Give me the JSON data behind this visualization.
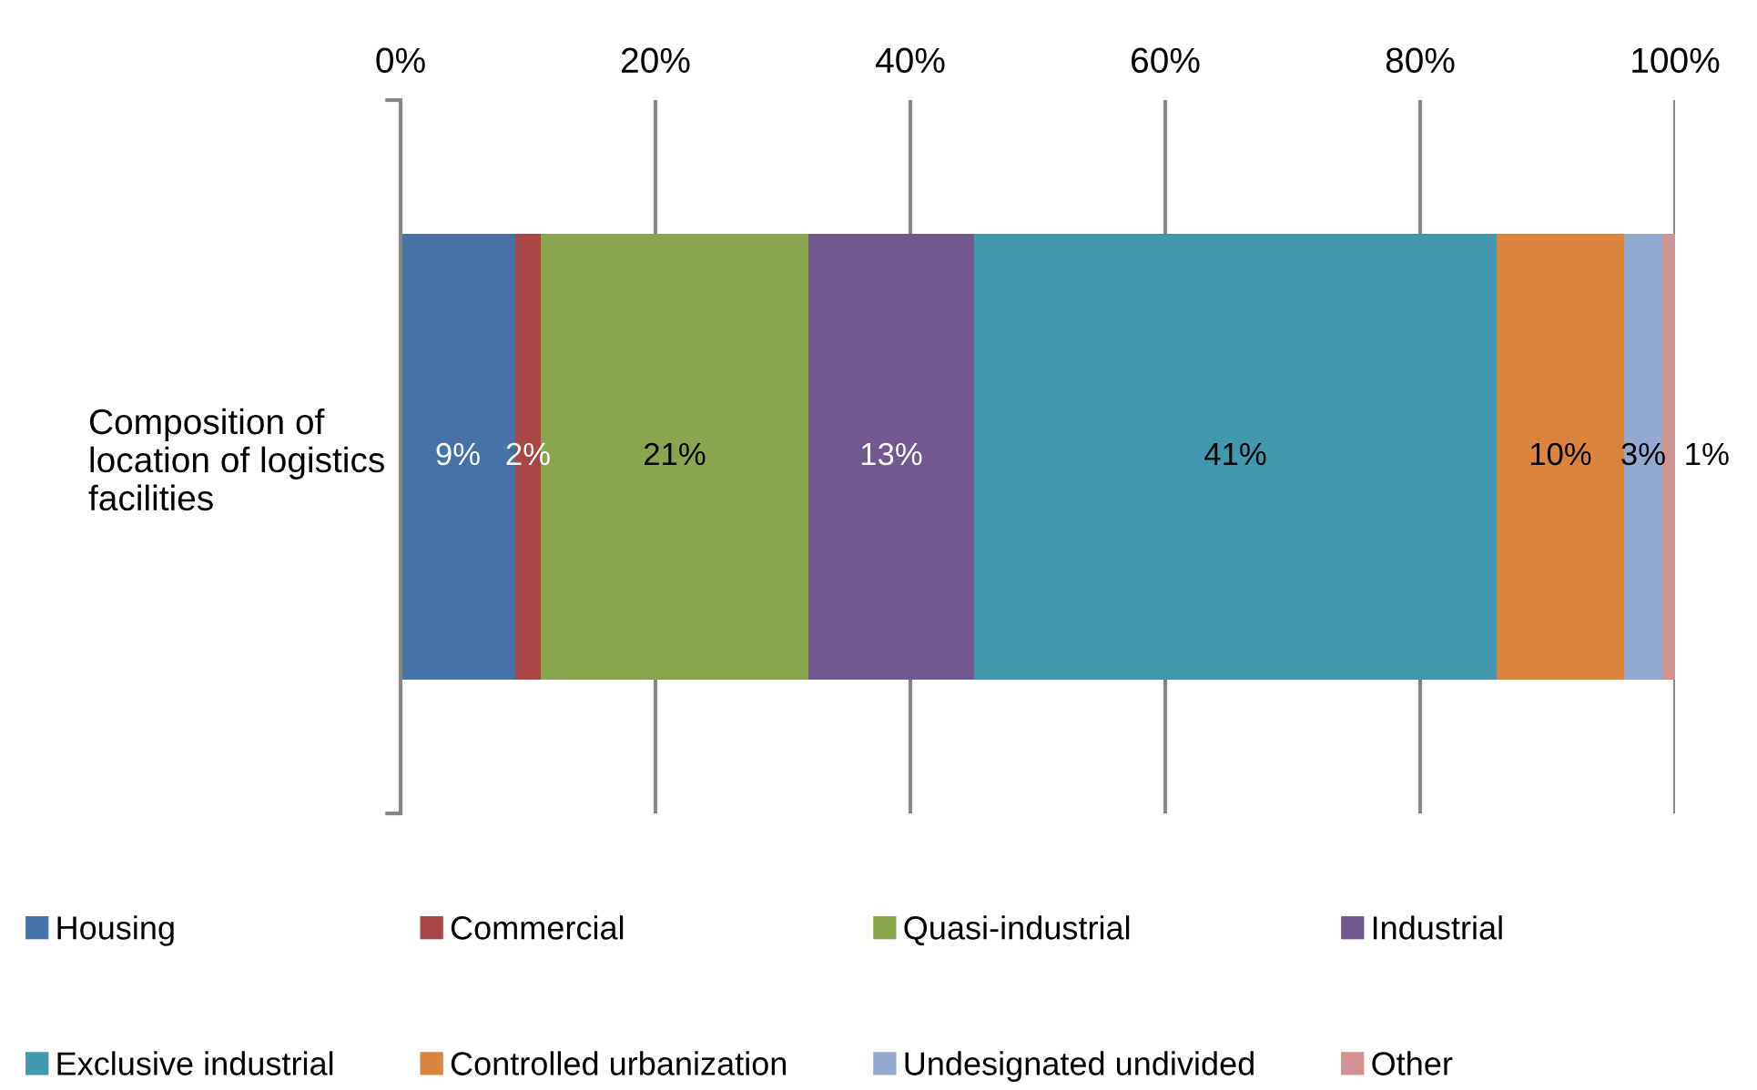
{
  "chart_data": {
    "type": "bar",
    "orientation": "horizontal",
    "stacked": true,
    "categories": [
      "Composition of\nlocation of logistics\nfacilities"
    ],
    "series": [
      {
        "name": "Housing",
        "color": "#4572a7",
        "values": [
          9
        ],
        "value_labels": [
          "9%"
        ]
      },
      {
        "name": "Commercial",
        "color": "#aa4643",
        "values": [
          2
        ],
        "value_labels": [
          "2%"
        ]
      },
      {
        "name": "Quasi-industrial",
        "color": "#89a54e",
        "values": [
          21
        ],
        "value_labels": [
          "21%"
        ]
      },
      {
        "name": "Industrial",
        "color": "#71588f",
        "values": [
          13
        ],
        "value_labels": [
          "13%"
        ]
      },
      {
        "name": "Exclusive industrial",
        "color": "#4198af",
        "values": [
          41
        ],
        "value_labels": [
          "41%"
        ]
      },
      {
        "name": "Controlled urbanization",
        "color": "#db843d",
        "values": [
          10
        ],
        "value_labels": [
          "10%"
        ]
      },
      {
        "name": "Undesignated undivided",
        "color": "#93a9cf",
        "values": [
          3
        ],
        "value_labels": [
          "3%"
        ]
      },
      {
        "name": "Other",
        "color": "#d19392",
        "values": [
          1
        ],
        "value_labels": [
          "1%"
        ]
      }
    ],
    "xlim": [
      0,
      100
    ],
    "xticks": [
      {
        "value": 0,
        "label": "0%"
      },
      {
        "value": 20,
        "label": "20%"
      },
      {
        "value": 40,
        "label": "40%"
      },
      {
        "value": 60,
        "label": "60%"
      },
      {
        "value": 80,
        "label": "80%"
      },
      {
        "value": 100,
        "label": "100%"
      }
    ],
    "grid": "x",
    "legend": "bottom"
  }
}
